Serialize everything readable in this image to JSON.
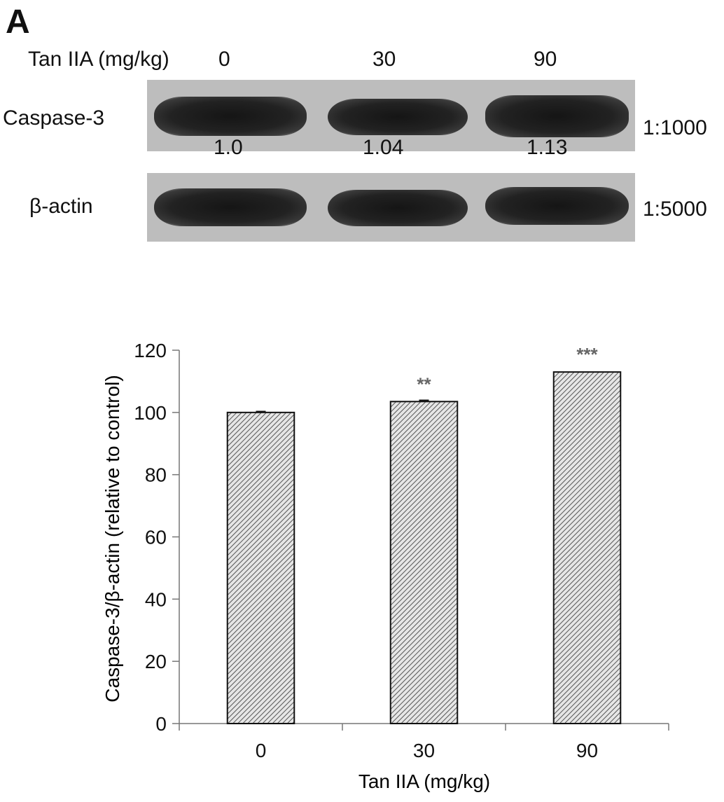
{
  "panel_label": "A",
  "western_blot": {
    "treatment_label": "Tan IIA (mg/kg)",
    "doses": [
      "0",
      "30",
      "90"
    ],
    "rows": [
      {
        "protein": "Caspase-3",
        "dilution": "1:1000"
      },
      {
        "protein": "β-actin",
        "dilution": "1:5000"
      }
    ],
    "quantification": [
      "1.0",
      "1.04",
      "1.13"
    ]
  },
  "chart_data": {
    "type": "bar",
    "categories": [
      "0",
      "30",
      "90"
    ],
    "values": [
      100,
      103.5,
      113
    ],
    "errors": [
      0.3,
      0.4,
      0
    ],
    "significance": [
      "",
      "**",
      "***"
    ],
    "title": "",
    "xlabel": "Tan IIA (mg/kg)",
    "ylabel": "Caspase-3/β-actin (relative to control)",
    "ylim": [
      0,
      120
    ],
    "yticks": [
      0,
      20,
      40,
      60,
      80,
      100,
      120
    ],
    "bar_fill": "hatched",
    "grid": false
  }
}
